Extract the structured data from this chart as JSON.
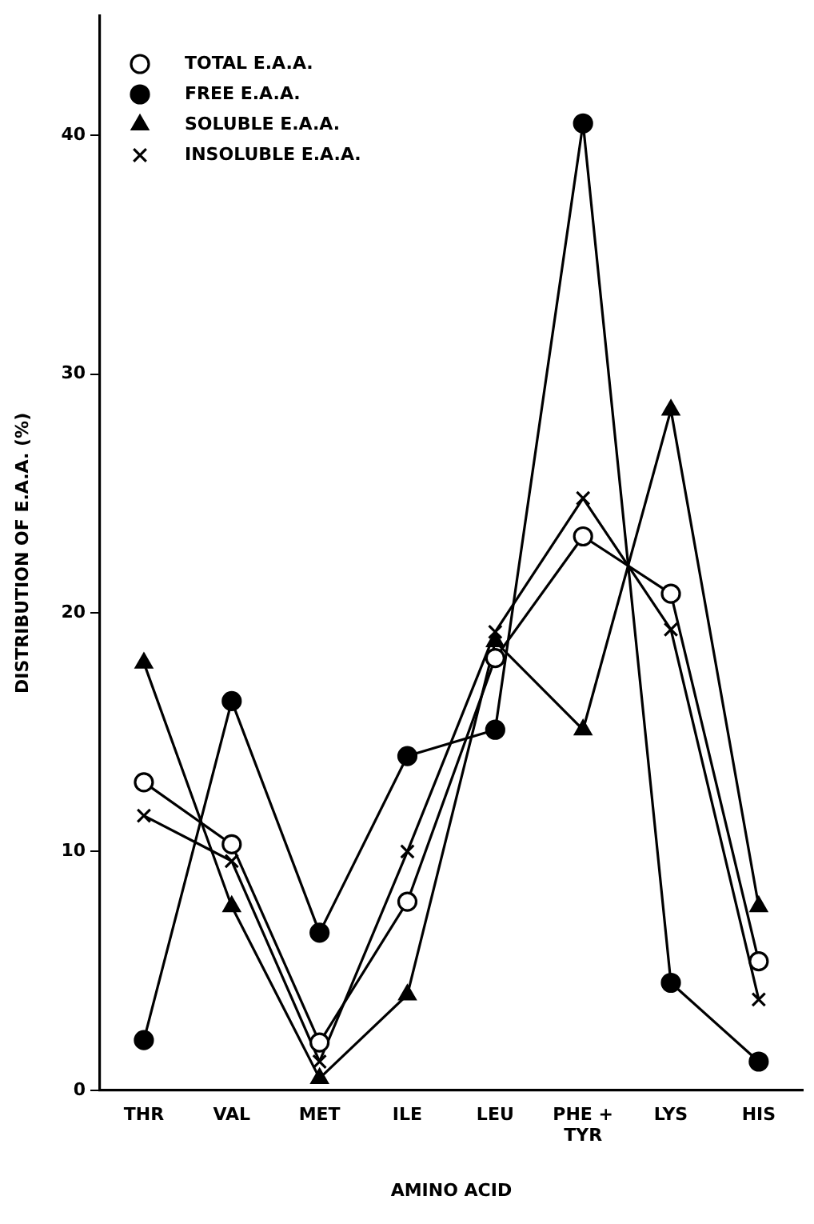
{
  "chart_data": {
    "type": "line",
    "xlabel": "AMINO ACID",
    "ylabel": "DISTRIBUTION OF E.A.A. (%)",
    "categories": [
      "THR",
      "VAL",
      "MET",
      "ILE",
      "LEU",
      "PHE + TYR",
      "LYS",
      "HIS"
    ],
    "series": [
      {
        "name": "TOTAL E.A.A.",
        "color": "#000000",
        "marker": "circle",
        "values": [
          12.9,
          10.3,
          2.0,
          7.9,
          18.1,
          23.2,
          20.8,
          5.4
        ]
      },
      {
        "name": "FREE E.A.A.",
        "color": "#000000",
        "marker": "circle",
        "values": [
          2.1,
          16.3,
          6.6,
          14.0,
          15.1,
          40.5,
          4.5,
          1.2
        ]
      },
      {
        "name": "SOLUBLE E.A.A.",
        "color": "#000000",
        "marker": "triangle",
        "values": [
          17.9,
          7.7,
          0.5,
          4.0,
          18.8,
          15.1,
          28.5,
          7.7
        ]
      },
      {
        "name": "INSOLUBLE E.A.A.",
        "color": "#000000",
        "marker": "cross",
        "values": [
          11.5,
          9.6,
          1.2,
          10.0,
          19.2,
          24.8,
          19.3,
          3.8
        ]
      }
    ],
    "ylim": [
      0,
      45
    ],
    "yticks": [
      0,
      10,
      20,
      30,
      40
    ],
    "grid": false,
    "legend": "top left",
    "line_style": "solid"
  }
}
